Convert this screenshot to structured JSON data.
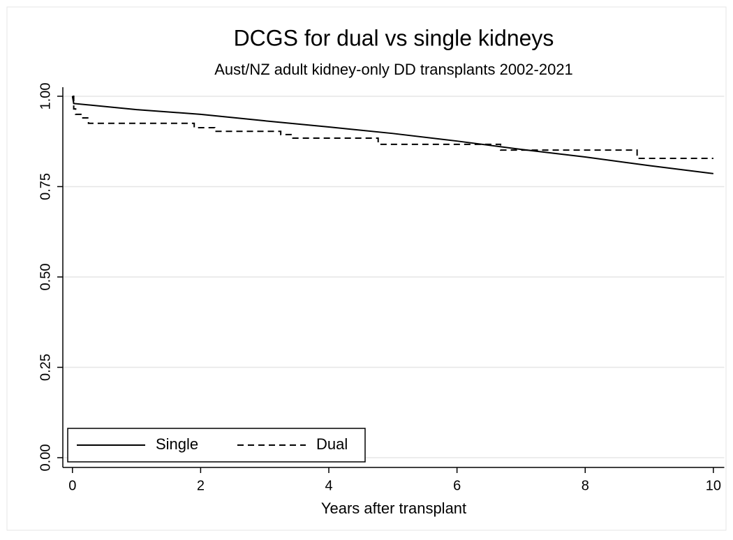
{
  "chart_data": {
    "type": "line",
    "title": "DCGS for dual vs single kidneys",
    "subtitle": "Aust/NZ adult kidney-only DD transplants 2002-2021",
    "x_label": "Years after transplant",
    "xlim": [
      -0.15,
      10.17
    ],
    "xticks": [
      0,
      2,
      4,
      6,
      8,
      10
    ],
    "ylim": [
      -0.027,
      1.025
    ],
    "yticks": [
      {
        "value": 0,
        "label": "0.00"
      },
      {
        "value": 0.25,
        "label": "0.25"
      },
      {
        "value": 0.5,
        "label": "0.50"
      },
      {
        "value": 0.75,
        "label": "0.75"
      },
      {
        "value": 1,
        "label": "1.00"
      }
    ],
    "grid": true,
    "legend": "bottom-left",
    "series": [
      {
        "name": "Single",
        "color": "#000000",
        "linestyle": "solid",
        "step": false,
        "x": [
          0,
          0.02,
          1,
          2,
          3,
          4,
          5,
          6,
          7,
          8,
          9,
          10
        ],
        "values": [
          1.0,
          0.98,
          0.963,
          0.95,
          0.932,
          0.915,
          0.897,
          0.876,
          0.853,
          0.832,
          0.808,
          0.786
        ]
      },
      {
        "name": "Dual",
        "color": "#000000",
        "linestyle": "dashed",
        "step": true,
        "x": [
          0,
          0.02,
          0.05,
          0.15,
          0.25,
          1.9,
          2.22,
          3.25,
          3.44,
          4.77,
          6.68,
          8.81,
          10
        ],
        "values": [
          1.0,
          0.965,
          0.95,
          0.94,
          0.925,
          0.913,
          0.903,
          0.894,
          0.884,
          0.867,
          0.851,
          0.828,
          0.828
        ]
      }
    ]
  }
}
